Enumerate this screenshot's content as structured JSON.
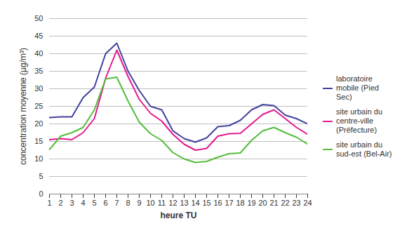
{
  "chart_data": {
    "type": "line",
    "x_label": "heure TU",
    "y_label": "concentration moyenne (µg/m³)",
    "x": [
      1,
      2,
      3,
      4,
      5,
      6,
      7,
      8,
      9,
      10,
      11,
      12,
      13,
      14,
      15,
      16,
      17,
      18,
      19,
      20,
      21,
      22,
      23,
      24
    ],
    "xlim": [
      1,
      24
    ],
    "xticks": [
      1,
      2,
      3,
      4,
      5,
      6,
      7,
      8,
      9,
      10,
      11,
      12,
      13,
      14,
      15,
      16,
      17,
      18,
      19,
      20,
      21,
      22,
      23,
      24
    ],
    "ylim": [
      0,
      50
    ],
    "yticks": [
      0,
      5,
      10,
      15,
      20,
      25,
      30,
      35,
      40,
      45,
      50
    ],
    "grid": true,
    "legend": "right",
    "series": [
      {
        "name": "laboratoire mobile (Pied Sec)",
        "color": "#41419f",
        "values": [
          21.8,
          22,
          22,
          27.5,
          30.5,
          40,
          43,
          35,
          29.5,
          25,
          24,
          18,
          15.8,
          14.8,
          16,
          19.2,
          19.5,
          21,
          24,
          25.5,
          25.2,
          22.5,
          21.5,
          20
        ]
      },
      {
        "name": "site urbain du centre-ville (Préfecture)",
        "color": "#e3198e",
        "values": [
          15.5,
          15.8,
          15.5,
          17.5,
          21.5,
          33,
          41,
          33.5,
          27,
          23,
          20.8,
          17,
          14.2,
          12.5,
          13,
          16.5,
          17.2,
          17.3,
          20,
          22.7,
          24,
          21.5,
          19,
          17
        ]
      },
      {
        "name": "site urbain du sud-est (Bel-Air)",
        "color": "#55bd3a",
        "values": [
          12.7,
          16.5,
          17.5,
          19,
          24,
          32.8,
          33.3,
          26.5,
          20.5,
          17.2,
          15.3,
          11.8,
          10,
          9,
          9.3,
          10.5,
          11.5,
          11.7,
          15.3,
          18,
          19,
          17.5,
          16.2,
          14.2
        ]
      }
    ]
  }
}
